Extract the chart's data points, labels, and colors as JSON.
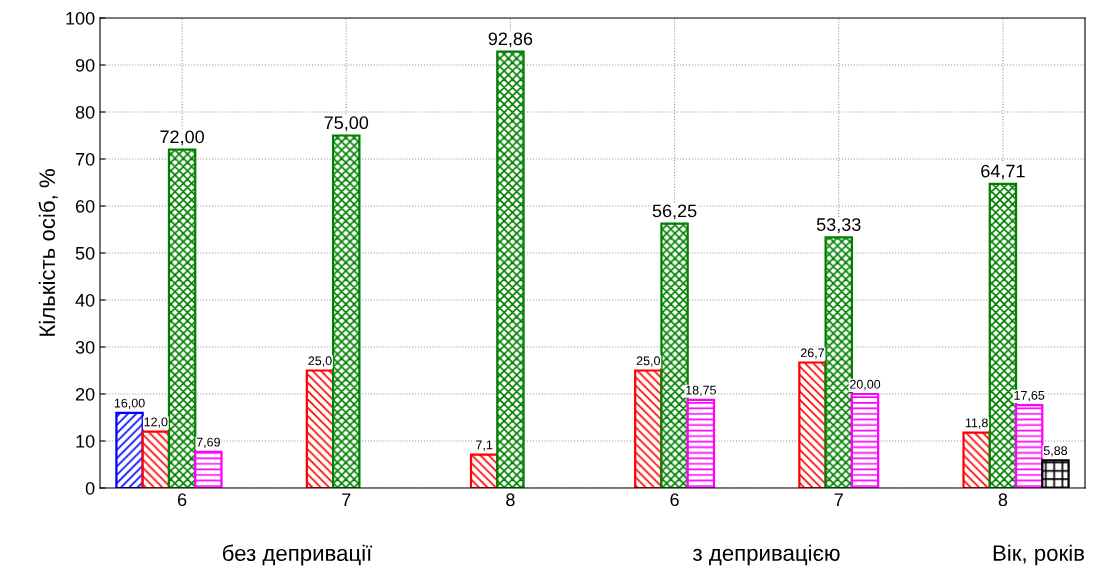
{
  "chart_data": {
    "type": "bar",
    "categories": [
      "6",
      "7",
      "8",
      "6",
      "7",
      "8"
    ],
    "series": [
      {
        "color": "#0000ff",
        "values": [
          16.0,
          null,
          null,
          null,
          null,
          null
        ],
        "value_labels": [
          "16,00",
          null,
          null,
          null,
          null,
          null
        ]
      },
      {
        "color": "#ff0000",
        "values": [
          12.0,
          25.0,
          7.1,
          25.0,
          26.7,
          11.8
        ],
        "value_labels": [
          "12,0",
          "25,0",
          "7,1",
          "25,0",
          "26,7",
          "11,8"
        ]
      },
      {
        "color": "#008000",
        "values": [
          72.0,
          75.0,
          92.86,
          56.25,
          53.33,
          64.71
        ],
        "value_labels": [
          "72,00",
          "75,00",
          "92,86",
          "56,25",
          "53,33",
          "64,71"
        ]
      },
      {
        "color": "#ff00ff",
        "values": [
          7.69,
          null,
          null,
          18.75,
          20.0,
          17.65
        ],
        "value_labels": [
          "7,69",
          null,
          null,
          "18,75",
          "20,00",
          "17,65"
        ]
      },
      {
        "color": "#000000",
        "values": [
          null,
          null,
          null,
          null,
          null,
          5.88
        ],
        "value_labels": [
          null,
          null,
          null,
          null,
          null,
          "5,88"
        ]
      }
    ],
    "ylabel": "Кількість осіб, %",
    "xlabel": "Вік, років",
    "annotations": [
      "без депривації",
      "з депривацією"
    ],
    "ylim": [
      0,
      100
    ],
    "yticks": [
      0,
      10,
      20,
      30,
      40,
      50,
      60,
      70,
      80,
      90,
      100
    ],
    "grid": true,
    "legend": false
  }
}
